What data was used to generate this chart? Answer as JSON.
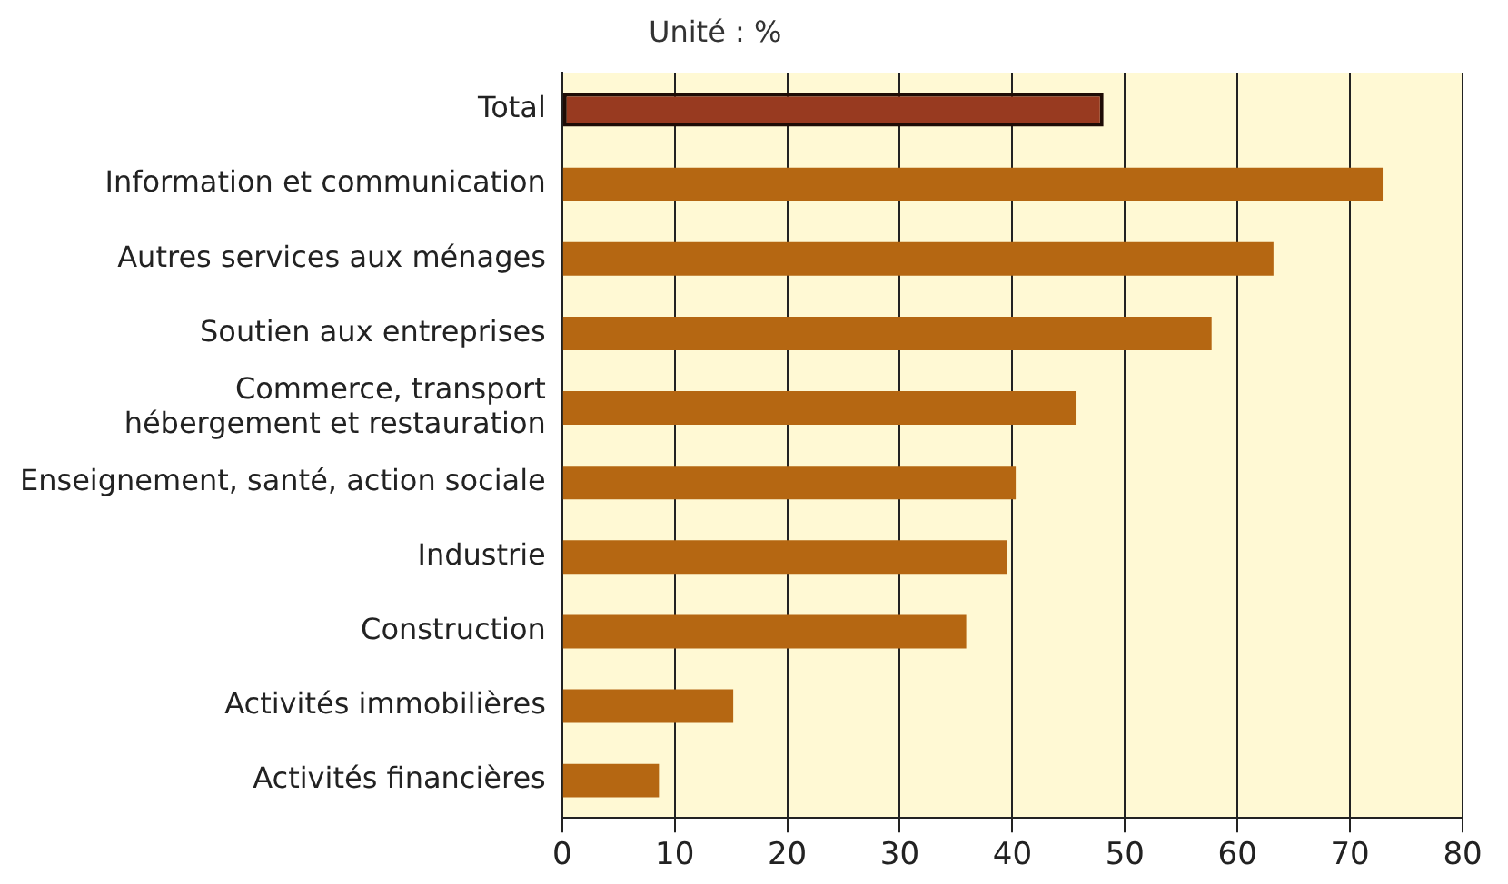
{
  "chart_data": {
    "type": "bar",
    "orientation": "horizontal",
    "categories": [
      "Total",
      "Information et communication",
      "Autres services aux ménages",
      "Soutien aux entreprises",
      "Commerce, transport\nhébergement et restauration",
      "Enseignement, santé, action sociale",
      "Industrie",
      "Construction",
      "Activités immobilières",
      "Activités financières"
    ],
    "values": [
      48.1,
      72.9,
      63.2,
      57.7,
      45.7,
      40.3,
      39.5,
      35.9,
      15.2,
      8.6
    ],
    "colors": [
      "#983a20",
      "#b56712",
      "#b56712",
      "#b56712",
      "#b56712",
      "#b56712",
      "#b56712",
      "#b56712",
      "#b56712",
      "#b56712"
    ],
    "xlim": [
      0,
      80
    ],
    "xticks": [
      0,
      10,
      20,
      30,
      40,
      50,
      60,
      70,
      80
    ],
    "grid": "x",
    "annotations": [
      "Unité : %"
    ]
  }
}
